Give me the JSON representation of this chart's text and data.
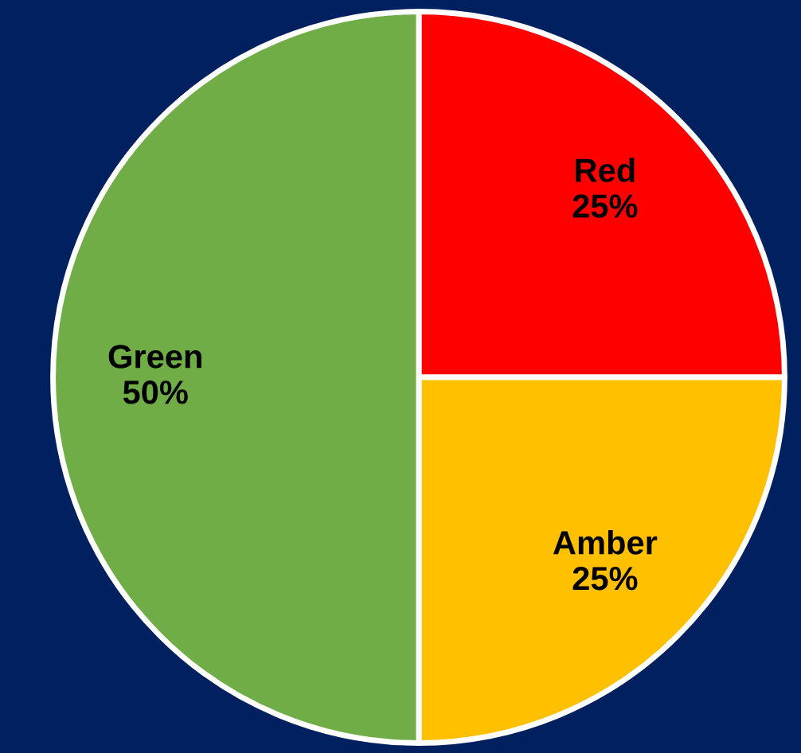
{
  "chart_data": {
    "type": "pie",
    "categories": [
      "Red",
      "Amber",
      "Green"
    ],
    "values": [
      25,
      25,
      50
    ],
    "colors": [
      "#ff0000",
      "#ffc000",
      "#70ad47"
    ],
    "value_labels": [
      "25%",
      "25%",
      "50%"
    ]
  }
}
